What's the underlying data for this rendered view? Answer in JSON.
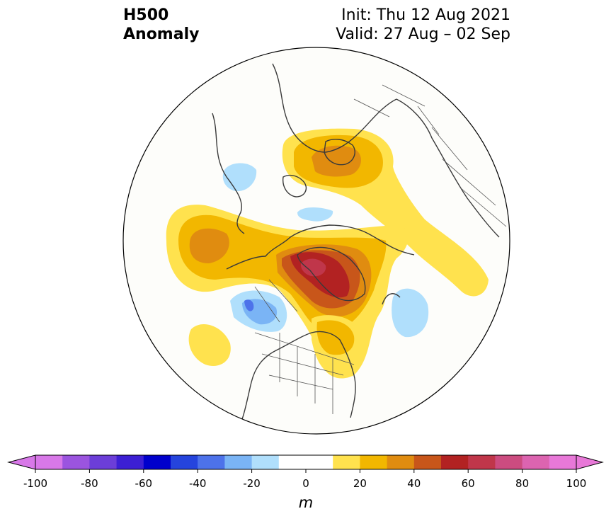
{
  "title": {
    "left_line1": "H500",
    "left_line2": "Anomaly",
    "right_line1": "Init: Thu 12 Aug 2021",
    "right_line2": "Valid: 27 Aug – 02 Sep"
  },
  "map": {
    "projection": "north-polar-stereographic",
    "field": "500 hPa geopotential height anomaly",
    "anomaly_regions": [
      {
        "region": "Barents/Kara Sea to Scandinavia",
        "peak_m": 35,
        "sign": "positive"
      },
      {
        "region": "North Pacific / Gulf of Alaska",
        "peak_m": 35,
        "sign": "positive"
      },
      {
        "region": "Greenland / Canadian Arctic Archipelago",
        "peak_m": 65,
        "sign": "positive"
      },
      {
        "region": "Northeastern North America",
        "peak_m": 25,
        "sign": "positive"
      },
      {
        "region": "Central North Pacific off California",
        "peak_m": 15,
        "sign": "positive"
      },
      {
        "region": "Pacific Northwest / Western Canada",
        "peak_m": -35,
        "sign": "negative"
      },
      {
        "region": "Central North Atlantic",
        "peak_m": -25,
        "sign": "negative"
      },
      {
        "region": "East Siberian Sea",
        "peak_m": -20,
        "sign": "negative"
      },
      {
        "region": "Laptev Sea",
        "peak_m": -15,
        "sign": "negative"
      }
    ]
  },
  "colorbar": {
    "unit": "m",
    "ticks": [
      "-100",
      "-80",
      "-60",
      "-40",
      "-20",
      "0",
      "20",
      "40",
      "60",
      "80",
      "100"
    ],
    "bounds": [
      -100,
      100
    ],
    "step": 10,
    "extend": "both",
    "colors": [
      "#d878e8",
      "#9b54df",
      "#6c3ed8",
      "#3c1fd4",
      "#0000cc",
      "#2544dd",
      "#4d72ea",
      "#7ab4f5",
      "#b0dffc",
      "#ffffff",
      "#ffffff",
      "#ffe24e",
      "#f2b700",
      "#e08c10",
      "#c8561a",
      "#b22222",
      "#c0364a",
      "#cc4c80",
      "#dc64b0",
      "#e878d8"
    ]
  }
}
